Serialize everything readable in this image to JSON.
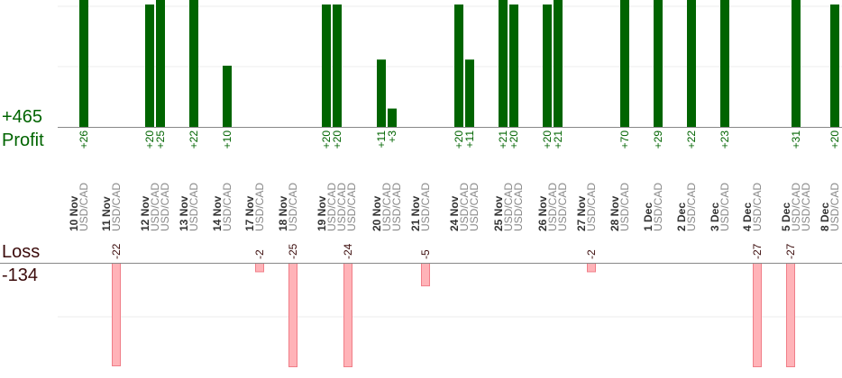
{
  "summary": {
    "profit_total": "+465",
    "profit_label": "Profit",
    "loss_label": "Loss",
    "loss_total": "-134"
  },
  "colors": {
    "profit_bar": "#006400",
    "loss_bar": "#ffb3b8",
    "loss_bar_edge": "#f07e88",
    "profit_text": "#006400",
    "loss_text": "#3a0a0a",
    "date_text": "#333333",
    "pair_text": "#888888",
    "axis": "#888888",
    "grid": "#eeeeee"
  },
  "chart_data": {
    "type": "bar",
    "title": "",
    "grid": true,
    "profit_axis": {
      "ylim": [
        0,
        35
      ]
    },
    "loss_axis": {
      "ylim": [
        -30,
        0
      ]
    },
    "days": [
      {
        "date": "10 Nov",
        "pair": "USD/CAD",
        "profits": [
          "+26"
        ],
        "losses": []
      },
      {
        "date": "11 Nov",
        "pair": "USD/CAD",
        "profits": [],
        "losses": [
          "-22"
        ]
      },
      {
        "date": "12 Nov",
        "pair": "USD/CAD",
        "pair2": "USD/CAD",
        "profits": [
          "+20",
          "+25"
        ],
        "losses": []
      },
      {
        "date": "13 Nov",
        "pair": "USD/CAD",
        "profits": [
          "+22"
        ],
        "losses": []
      },
      {
        "date": "14 Nov",
        "pair": "USD/CAD",
        "profits": [
          "+10"
        ],
        "losses": []
      },
      {
        "date": "17 Nov",
        "pair": "USD/CAD",
        "profits": [],
        "losses": [
          "-2"
        ]
      },
      {
        "date": "18 Nov",
        "pair": "USD/CAD",
        "profits": [],
        "losses": [
          "-25"
        ]
      },
      {
        "date": "19 Nov",
        "pair": "USD/CAD",
        "pair2": "USD/CAD",
        "pair3": "USD/CAD",
        "profits": [
          "+20",
          "+20"
        ],
        "losses": [
          "-24"
        ]
      },
      {
        "date": "20 Nov",
        "pair": "USD/CAD",
        "pair2": "USD/CAD",
        "profits": [
          "+11",
          "+3"
        ],
        "losses": []
      },
      {
        "date": "21 Nov",
        "pair": "USD/CAD",
        "profits": [],
        "losses": [
          "-5"
        ]
      },
      {
        "date": "24 Nov",
        "pair": "USD/CAD",
        "pair2": "USD/CAD",
        "profits": [
          "+20",
          "+11"
        ],
        "losses": []
      },
      {
        "date": "25 Nov",
        "pair": "USD/CAD",
        "pair2": "USD/CAD",
        "profits": [
          "+21",
          "+20"
        ],
        "losses": []
      },
      {
        "date": "26 Nov",
        "pair": "USD/CAD",
        "pair2": "USD/CAD",
        "profits": [
          "+20",
          "+21"
        ],
        "losses": []
      },
      {
        "date": "27 Nov",
        "pair": "USD/CAD",
        "profits": [],
        "losses": [
          "-2"
        ]
      },
      {
        "date": "28 Nov",
        "pair": "USD/CAD",
        "profits": [
          "+70"
        ],
        "losses": []
      },
      {
        "date": "1 Dec",
        "pair": "USD/CAD",
        "profits": [
          "+29"
        ],
        "losses": []
      },
      {
        "date": "2 Dec",
        "pair": "USD/CAD",
        "profits": [
          "+22"
        ],
        "losses": []
      },
      {
        "date": "3 Dec",
        "pair": "USD/CAD",
        "profits": [
          "+23"
        ],
        "losses": []
      },
      {
        "date": "4 Dec",
        "pair": "USD/CAD",
        "profits": [],
        "losses": [
          "-27"
        ]
      },
      {
        "date": "5 Dec",
        "pair": "USD/CAD",
        "pair2": "USD/CAD",
        "profits": [
          "+31"
        ],
        "losses": [
          "-27"
        ]
      },
      {
        "date": "8 Dec",
        "pair": "USD/CAD",
        "profits": [
          "+20"
        ],
        "losses": []
      }
    ]
  }
}
